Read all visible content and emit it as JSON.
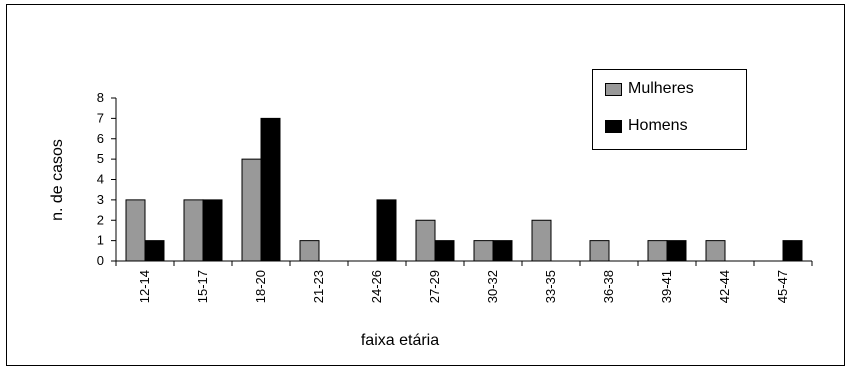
{
  "chart_data": {
    "type": "bar",
    "xlabel": "faixa etária",
    "ylabel": "n. de casos",
    "ylim": [
      0,
      8
    ],
    "yticks": [
      0,
      1,
      2,
      3,
      4,
      5,
      6,
      7,
      8
    ],
    "categories": [
      "12-14",
      "15-17",
      "18-20",
      "21-23",
      "24-26",
      "27-29",
      "30-32",
      "33-35",
      "36-38",
      "39-41",
      "42-44",
      "45-47"
    ],
    "series": [
      {
        "name": "Mulheres",
        "color": "#999999",
        "values": [
          3,
          3,
          5,
          1,
          0,
          2,
          1,
          2,
          1,
          1,
          1,
          0
        ]
      },
      {
        "name": "Homens",
        "color": "#000000",
        "values": [
          1,
          3,
          7,
          0,
          3,
          1,
          1,
          0,
          0,
          1,
          0,
          1
        ]
      }
    ],
    "grid": false,
    "legend": "top-right"
  }
}
